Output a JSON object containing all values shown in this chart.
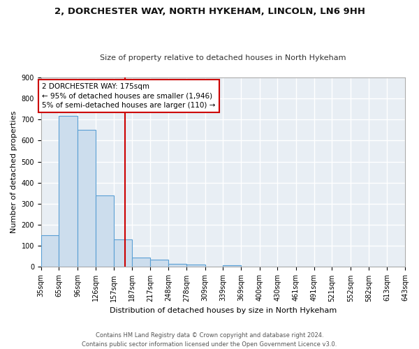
{
  "title1": "2, DORCHESTER WAY, NORTH HYKEHAM, LINCOLN, LN6 9HH",
  "title2": "Size of property relative to detached houses in North Hykeham",
  "xlabel": "Distribution of detached houses by size in North Hykeham",
  "ylabel": "Number of detached properties",
  "footer": "Contains HM Land Registry data © Crown copyright and database right 2024.\nContains public sector information licensed under the Open Government Licence v3.0.",
  "bin_edges": [
    35,
    65,
    96,
    126,
    157,
    187,
    217,
    248,
    278,
    309,
    339,
    369,
    400,
    430,
    461,
    491,
    521,
    552,
    582,
    613,
    643
  ],
  "bar_heights": [
    150,
    718,
    651,
    340,
    130,
    43,
    35,
    15,
    10,
    0,
    8,
    0,
    0,
    0,
    0,
    0,
    0,
    0,
    0,
    0
  ],
  "bar_color": "#ccdded",
  "bar_edge_color": "#5a9fd4",
  "property_size": 175,
  "property_label": "2 DORCHESTER WAY: 175sqm",
  "annotation_line1": "← 95% of detached houses are smaller (1,946)",
  "annotation_line2": "5% of semi-detached houses are larger (110) →",
  "vline_color": "#cc0000",
  "annotation_box_color": "#ffffff",
  "annotation_box_edge": "#cc0000",
  "bg_color": "#e8eef4",
  "grid_color": "#ffffff",
  "fig_bg": "#ffffff",
  "tick_labels": [
    "35sqm",
    "65sqm",
    "96sqm",
    "126sqm",
    "157sqm",
    "187sqm",
    "217sqm",
    "248sqm",
    "278sqm",
    "309sqm",
    "339sqm",
    "369sqm",
    "400sqm",
    "430sqm",
    "461sqm",
    "491sqm",
    "521sqm",
    "552sqm",
    "582sqm",
    "613sqm",
    "643sqm"
  ],
  "ylim": [
    0,
    900
  ],
  "yticks": [
    0,
    100,
    200,
    300,
    400,
    500,
    600,
    700,
    800,
    900
  ],
  "title1_fontsize": 9.5,
  "title2_fontsize": 8.0,
  "xlabel_fontsize": 8.0,
  "ylabel_fontsize": 8.0,
  "footer_fontsize": 6.0,
  "tick_fontsize": 7.0,
  "annotation_fontsize": 7.5
}
